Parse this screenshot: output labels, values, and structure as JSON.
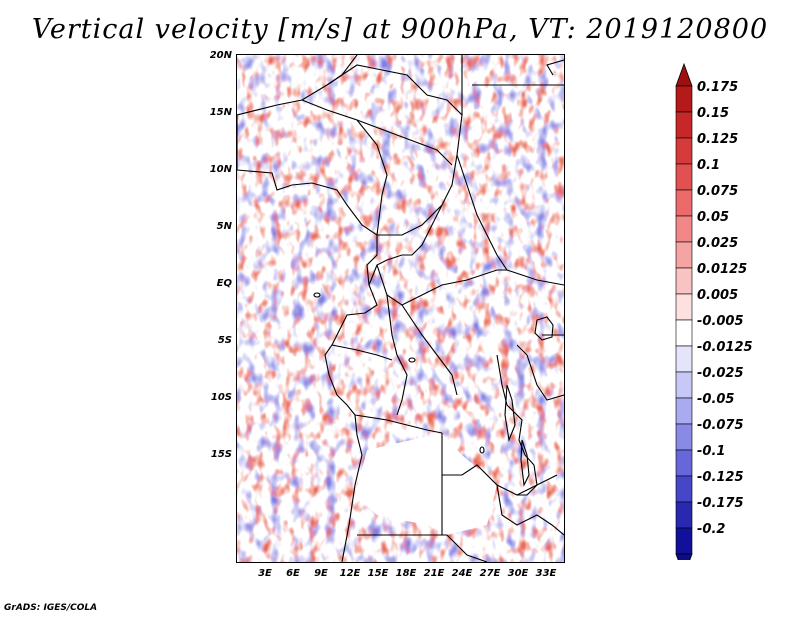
{
  "title": "Vertical velocity [m/s] at 900hPa, VT: 2019120800",
  "credit": "GrADS: IGES/COLA",
  "y_axis_ticks": [
    "20N",
    "15N",
    "10N",
    "5N",
    "EQ",
    "5S",
    "10S",
    "15S"
  ],
  "x_axis_ticks": [
    "3E",
    "6E",
    "9E",
    "12E",
    "15E",
    "18E",
    "21E",
    "24E",
    "27E",
    "30E",
    "33E"
  ],
  "colorbar": {
    "labels": [
      "0.175",
      "0.15",
      "0.125",
      "0.1",
      "0.075",
      "0.05",
      "0.025",
      "0.0125",
      "0.005",
      "-0.005",
      "-0.0125",
      "-0.025",
      "-0.05",
      "-0.075",
      "-0.1",
      "-0.125",
      "-0.175",
      "-0.2"
    ],
    "colors": [
      "#b41a1a",
      "#c62727",
      "#d63a3a",
      "#e25151",
      "#ec6a6a",
      "#f18787",
      "#f5a4a4",
      "#f9c3c3",
      "#fde0e0",
      "#ffffff",
      "#e4e4fb",
      "#c8c8f6",
      "#aaaaf0",
      "#8989e6",
      "#6767d9",
      "#4646c8",
      "#2828b1",
      "#10109a"
    ],
    "top_arrow_color": "#a00f0f",
    "bottom_arrow_color": "#0c0c88"
  },
  "field_palette": {
    "positive": "#e8553f",
    "negative": "#6a6ae0"
  }
}
